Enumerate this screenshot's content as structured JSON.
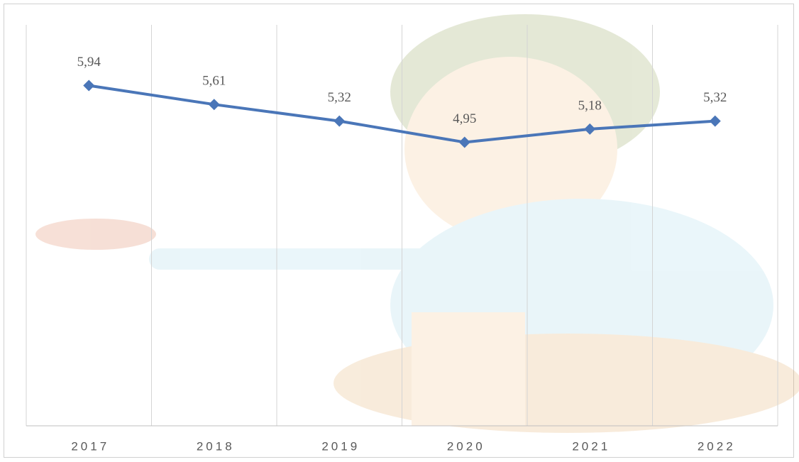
{
  "chart_data": {
    "type": "line",
    "categories": [
      "2017",
      "2018",
      "2019",
      "2020",
      "2021",
      "2022"
    ],
    "values": [
      5.94,
      5.61,
      5.32,
      4.95,
      5.18,
      5.32
    ],
    "value_labels": [
      "5,94",
      "5,61",
      "5,32",
      "4,95",
      "5,18",
      "5,32"
    ],
    "color": "#4a76b8",
    "ylim": [
      0,
      7
    ]
  }
}
